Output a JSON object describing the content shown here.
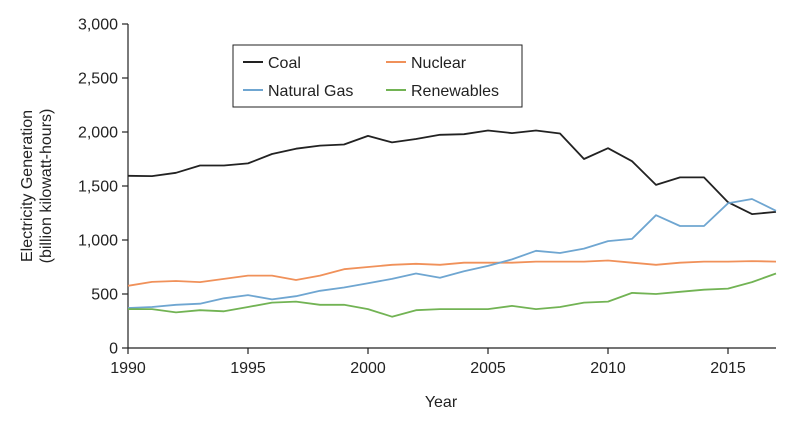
{
  "chart_data": {
    "type": "line",
    "title": "",
    "xlabel": "Year",
    "ylabel_line1": "Electricity Generation",
    "ylabel_line2": "(billion kilowatt-hours)",
    "xlim": [
      1990,
      2017
    ],
    "ylim": [
      0,
      3000
    ],
    "grid": false,
    "legend_position": "top-left",
    "x_ticks": [
      1990,
      1995,
      2000,
      2005,
      2010,
      2015
    ],
    "x_tick_labels": [
      "1990",
      "1995",
      "2000",
      "2005",
      "2010",
      "2015"
    ],
    "y_ticks": [
      0,
      500,
      1000,
      1500,
      2000,
      2500,
      3000
    ],
    "y_tick_labels": [
      "0",
      "500",
      "1,000",
      "1,500",
      "2,000",
      "2,500",
      "3,000"
    ],
    "x": [
      1990,
      1991,
      1992,
      1993,
      1994,
      1995,
      1996,
      1997,
      1998,
      1999,
      2000,
      2001,
      2002,
      2003,
      2004,
      2005,
      2006,
      2007,
      2008,
      2009,
      2010,
      2011,
      2012,
      2013,
      2014,
      2015,
      2016,
      2017
    ],
    "series": [
      {
        "name": "Coal",
        "color": "#222222",
        "values": [
          1594,
          1592,
          1622,
          1690,
          1690,
          1709,
          1796,
          1845,
          1874,
          1884,
          1964,
          1904,
          1935,
          1974,
          1980,
          2014,
          1990,
          2014,
          1986,
          1750,
          1850,
          1730,
          1510,
          1580,
          1580,
          1350,
          1240,
          1260
        ]
      },
      {
        "name": "Nuclear",
        "color": "#f0915a",
        "values": [
          576,
          612,
          620,
          610,
          640,
          670,
          670,
          630,
          670,
          730,
          750,
          770,
          780,
          770,
          790,
          790,
          790,
          800,
          800,
          800,
          810,
          790,
          770,
          790,
          800,
          800,
          805,
          800
        ]
      },
      {
        "name": "Natural Gas",
        "color": "#6fa6d1",
        "values": [
          370,
          380,
          400,
          410,
          460,
          490,
          450,
          480,
          530,
          560,
          600,
          640,
          690,
          650,
          710,
          760,
          820,
          900,
          880,
          920,
          990,
          1010,
          1230,
          1130,
          1130,
          1340,
          1380,
          1270
        ]
      },
      {
        "name": "Renewables",
        "color": "#72b354",
        "values": [
          360,
          360,
          330,
          350,
          340,
          380,
          420,
          430,
          400,
          400,
          360,
          290,
          350,
          360,
          360,
          360,
          390,
          360,
          380,
          420,
          430,
          510,
          500,
          520,
          540,
          550,
          610,
          690
        ]
      }
    ]
  }
}
